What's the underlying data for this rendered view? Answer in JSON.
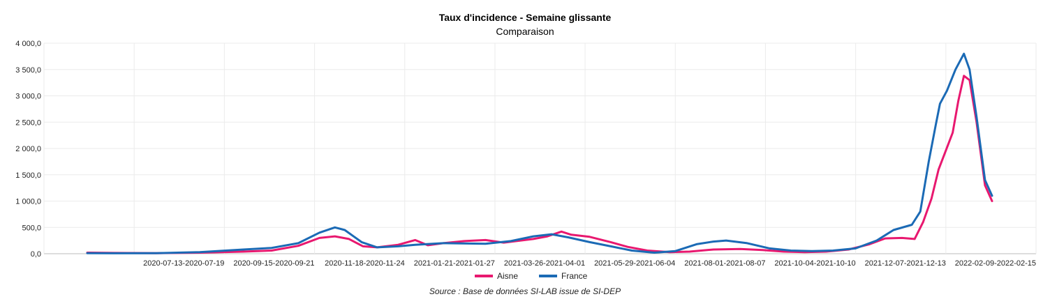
{
  "chart_data": {
    "type": "line",
    "title": "Taux d'incidence - Semaine glissante",
    "subtitle": "Comparaison",
    "source": "Source : Base de données SI-LAB issue de SI-DEP",
    "ylim": [
      0,
      4000
    ],
    "y_ticks": [
      "0,0",
      "500,0",
      "1 000,0",
      "1 500,0",
      "2 000,0",
      "2 500,0",
      "3 000,0",
      "3 500,0",
      "4 000,0"
    ],
    "x_ticks": [
      "2020-07-13-2020-07-19",
      "2020-09-15-2020-09-21",
      "2020-11-18-2020-11-24",
      "2021-01-21-2021-01-27",
      "2021-03-26-2021-04-01",
      "2021-05-29-2021-06-04",
      "2021-08-01-2021-08-07",
      "2021-10-04-2021-10-10",
      "2021-12-07-2021-12-13",
      "2022-02-09-2022-02-15"
    ],
    "x_range": [
      "2020-05-13",
      "2022-02-15"
    ],
    "grid": true,
    "legend_position": "bottom-center",
    "series": [
      {
        "name": "Aisne",
        "color": "#e8186f",
        "points": [
          [
            "2020-05-13",
            20
          ],
          [
            "2020-06-01",
            15
          ],
          [
            "2020-07-01",
            10
          ],
          [
            "2020-08-01",
            20
          ],
          [
            "2020-09-01",
            40
          ],
          [
            "2020-09-21",
            60
          ],
          [
            "2020-10-10",
            150
          ],
          [
            "2020-10-25",
            300
          ],
          [
            "2020-11-05",
            330
          ],
          [
            "2020-11-15",
            280
          ],
          [
            "2020-11-25",
            140
          ],
          [
            "2020-12-05",
            120
          ],
          [
            "2020-12-20",
            170
          ],
          [
            "2021-01-01",
            260
          ],
          [
            "2021-01-10",
            160
          ],
          [
            "2021-01-21",
            200
          ],
          [
            "2021-02-05",
            240
          ],
          [
            "2021-02-20",
            260
          ],
          [
            "2021-03-05",
            210
          ],
          [
            "2021-03-26",
            280
          ],
          [
            "2021-04-05",
            330
          ],
          [
            "2021-04-15",
            420
          ],
          [
            "2021-04-22",
            360
          ],
          [
            "2021-05-05",
            320
          ],
          [
            "2021-05-20",
            220
          ],
          [
            "2021-06-01",
            130
          ],
          [
            "2021-06-15",
            60
          ],
          [
            "2021-07-01",
            30
          ],
          [
            "2021-07-15",
            40
          ],
          [
            "2021-08-01",
            80
          ],
          [
            "2021-08-20",
            90
          ],
          [
            "2021-09-05",
            70
          ],
          [
            "2021-09-20",
            40
          ],
          [
            "2021-10-05",
            30
          ],
          [
            "2021-10-20",
            40
          ],
          [
            "2021-11-05",
            80
          ],
          [
            "2021-11-20",
            180
          ],
          [
            "2021-12-01",
            290
          ],
          [
            "2021-12-13",
            300
          ],
          [
            "2021-12-22",
            280
          ],
          [
            "2021-12-28",
            600
          ],
          [
            "2022-01-03",
            1050
          ],
          [
            "2022-01-08",
            1600
          ],
          [
            "2022-01-13",
            1950
          ],
          [
            "2022-01-18",
            2300
          ],
          [
            "2022-01-22",
            2900
          ],
          [
            "2022-01-26",
            3380
          ],
          [
            "2022-01-30",
            3300
          ],
          [
            "2022-02-04",
            2500
          ],
          [
            "2022-02-10",
            1300
          ],
          [
            "2022-02-15",
            1000
          ]
        ]
      },
      {
        "name": "France",
        "color": "#1b6ab5",
        "points": [
          [
            "2020-05-13",
            10
          ],
          [
            "2020-06-01",
            8
          ],
          [
            "2020-07-01",
            10
          ],
          [
            "2020-08-01",
            30
          ],
          [
            "2020-09-01",
            80
          ],
          [
            "2020-09-21",
            110
          ],
          [
            "2020-10-10",
            200
          ],
          [
            "2020-10-25",
            400
          ],
          [
            "2020-11-05",
            500
          ],
          [
            "2020-11-12",
            450
          ],
          [
            "2020-11-24",
            220
          ],
          [
            "2020-12-05",
            120
          ],
          [
            "2020-12-20",
            140
          ],
          [
            "2021-01-01",
            170
          ],
          [
            "2021-01-21",
            200
          ],
          [
            "2021-02-20",
            190
          ],
          [
            "2021-03-10",
            240
          ],
          [
            "2021-03-26",
            330
          ],
          [
            "2021-04-08",
            370
          ],
          [
            "2021-04-20",
            310
          ],
          [
            "2021-05-05",
            220
          ],
          [
            "2021-05-20",
            140
          ],
          [
            "2021-06-04",
            60
          ],
          [
            "2021-06-20",
            20
          ],
          [
            "2021-07-05",
            50
          ],
          [
            "2021-07-20",
            180
          ],
          [
            "2021-08-01",
            230
          ],
          [
            "2021-08-10",
            250
          ],
          [
            "2021-08-25",
            200
          ],
          [
            "2021-09-10",
            100
          ],
          [
            "2021-09-25",
            60
          ],
          [
            "2021-10-10",
            50
          ],
          [
            "2021-10-25",
            60
          ],
          [
            "2021-11-10",
            100
          ],
          [
            "2021-11-25",
            250
          ],
          [
            "2021-12-07",
            450
          ],
          [
            "2021-12-20",
            550
          ],
          [
            "2021-12-26",
            800
          ],
          [
            "2022-01-01",
            1750
          ],
          [
            "2022-01-06",
            2450
          ],
          [
            "2022-01-09",
            2850
          ],
          [
            "2022-01-14",
            3100
          ],
          [
            "2022-01-20",
            3500
          ],
          [
            "2022-01-26",
            3800
          ],
          [
            "2022-01-30",
            3500
          ],
          [
            "2022-02-04",
            2600
          ],
          [
            "2022-02-10",
            1400
          ],
          [
            "2022-02-15",
            1100
          ]
        ]
      }
    ]
  }
}
